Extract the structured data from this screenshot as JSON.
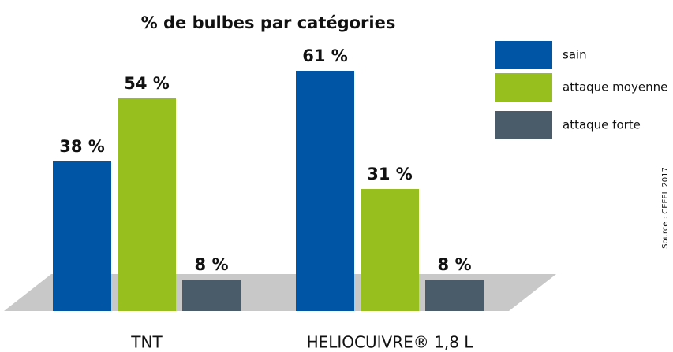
{
  "chart_data": {
    "type": "bar",
    "title": "% de bulbes par catégories",
    "categories": [
      "TNT",
      "HELIOCUIVRE® 1,8 L"
    ],
    "series": [
      {
        "name": "sain",
        "color": "#0055a5",
        "values": [
          38,
          61
        ],
        "value_labels": [
          "38 %",
          "61 %"
        ]
      },
      {
        "name": "attaque moyenne",
        "color": "#97bf1e",
        "values": [
          54,
          31
        ],
        "value_labels": [
          "54 %",
          "31 %"
        ]
      },
      {
        "name": "attaque forte",
        "color": "#4a5b6a",
        "values": [
          8,
          8
        ],
        "value_labels": [
          "8 %",
          "8 %"
        ]
      }
    ],
    "legend": "top-right",
    "source": "Source : CEFEL 2017"
  }
}
